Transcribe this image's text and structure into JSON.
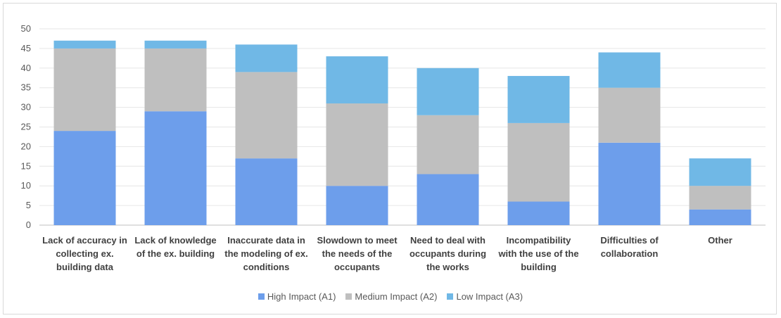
{
  "chart_data": {
    "type": "bar",
    "stacked": true,
    "categories": [
      [
        "Lack of accuracy in",
        "collecting ex.",
        "building data"
      ],
      [
        "Lack of knowledge",
        "of the ex. building"
      ],
      [
        "Inaccurate data in",
        "the modeling of ex.",
        "conditions"
      ],
      [
        "Slowdown to meet",
        "the needs of the",
        "occupants"
      ],
      [
        "Need to deal with",
        "occupants during",
        "the works"
      ],
      [
        "Incompatibility",
        "with the use of the",
        "building"
      ],
      [
        "Difficulties of",
        "collaboration"
      ],
      [
        "Other"
      ]
    ],
    "series": [
      {
        "name": "High Impact (A1)",
        "color": "#6d9eeb",
        "values": [
          24,
          29,
          17,
          10,
          13,
          6,
          21,
          4
        ]
      },
      {
        "name": "Medium Impact (A2)",
        "color": "#bfbfbf",
        "values": [
          21,
          16,
          22,
          21,
          15,
          20,
          14,
          6
        ]
      },
      {
        "name": "Low Impact (A3)",
        "color": "#70b8e6",
        "values": [
          2,
          2,
          7,
          12,
          12,
          12,
          9,
          7
        ]
      }
    ],
    "ylim": [
      0,
      50
    ],
    "yticks": [
      0,
      5,
      10,
      15,
      20,
      25,
      30,
      35,
      40,
      45,
      50
    ],
    "grid": true,
    "legend": "bottom"
  }
}
